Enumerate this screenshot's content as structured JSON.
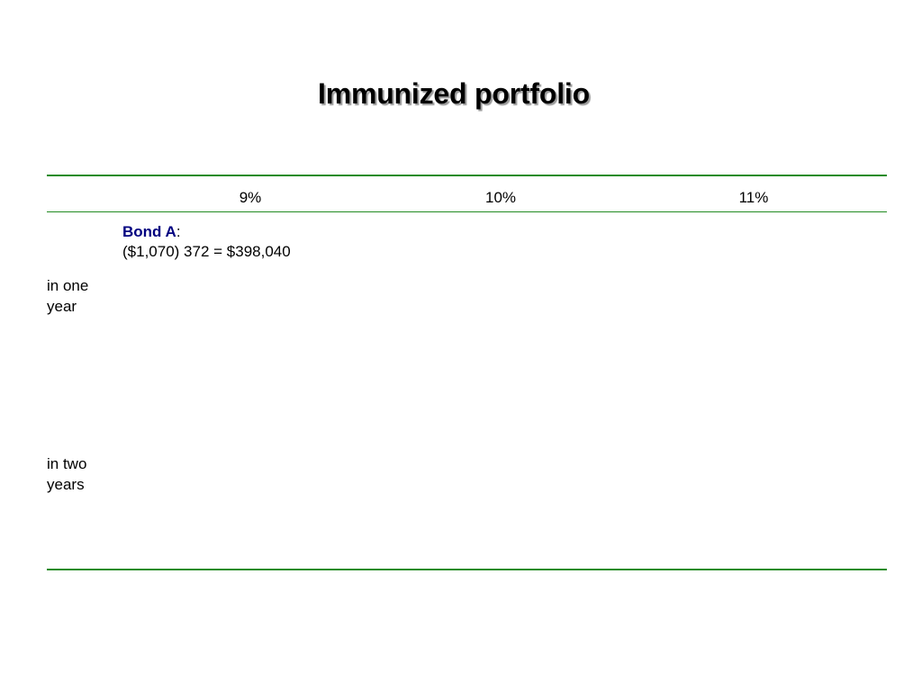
{
  "title": "Immunized portfolio",
  "table": {
    "columns": [
      "9%",
      "10%",
      "11%"
    ],
    "bond": {
      "label": "Bond A",
      "colon": ":",
      "formula": "($1,070) 372 = $398,040"
    },
    "rows": [
      {
        "line1": "in one",
        "line2": "year"
      },
      {
        "line1": "in two",
        "line2": "years"
      }
    ]
  },
  "colors": {
    "rule": "#228b22",
    "bond_label": "#000080"
  }
}
